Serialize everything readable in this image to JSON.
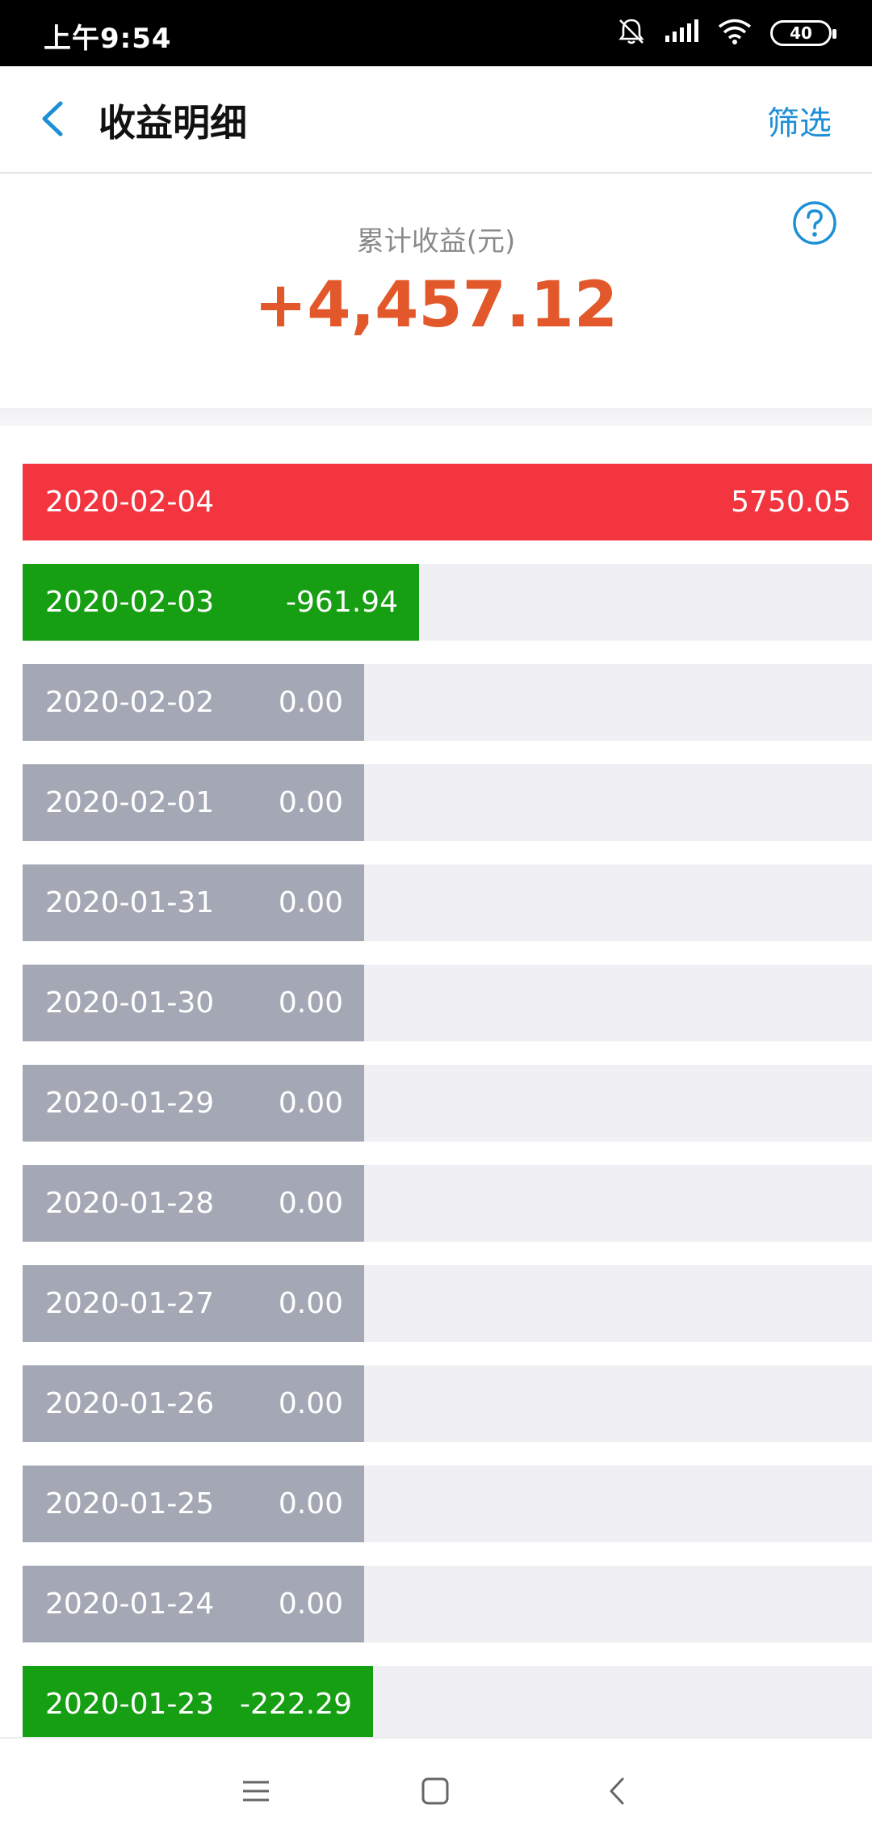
{
  "status_bar": {
    "time": "上午9:54",
    "battery": "40",
    "icons": [
      "bell-off-icon",
      "signal-icon",
      "wifi-icon",
      "battery-icon"
    ]
  },
  "header": {
    "title": "收益明细",
    "filter_label": "筛选",
    "back_icon": "chevron-left-icon"
  },
  "summary": {
    "label": "累计收益(元)",
    "value": "+4,457.12",
    "help_icon": "question-circle-icon"
  },
  "colors": {
    "positive": "#f2353f",
    "negative": "#179f13",
    "zero": "#a4a8b4",
    "accent": "#1c8fd6",
    "summary_value": "#e2582a"
  },
  "entries": [
    {
      "date": "2020-02-04",
      "amount": "5750.05",
      "value": 5750.05
    },
    {
      "date": "2020-02-03",
      "amount": "-961.94",
      "value": -961.94
    },
    {
      "date": "2020-02-02",
      "amount": "0.00",
      "value": 0
    },
    {
      "date": "2020-02-01",
      "amount": "0.00",
      "value": 0
    },
    {
      "date": "2020-01-31",
      "amount": "0.00",
      "value": 0
    },
    {
      "date": "2020-01-30",
      "amount": "0.00",
      "value": 0
    },
    {
      "date": "2020-01-29",
      "amount": "0.00",
      "value": 0
    },
    {
      "date": "2020-01-28",
      "amount": "0.00",
      "value": 0
    },
    {
      "date": "2020-01-27",
      "amount": "0.00",
      "value": 0
    },
    {
      "date": "2020-01-26",
      "amount": "0.00",
      "value": 0
    },
    {
      "date": "2020-01-25",
      "amount": "0.00",
      "value": 0
    },
    {
      "date": "2020-01-24",
      "amount": "0.00",
      "value": 0
    },
    {
      "date": "2020-01-23",
      "amount": "-222.29",
      "value": -222.29
    }
  ],
  "nav_bar": {
    "icons": [
      "menu-icon",
      "home-square-icon",
      "back-icon"
    ]
  }
}
